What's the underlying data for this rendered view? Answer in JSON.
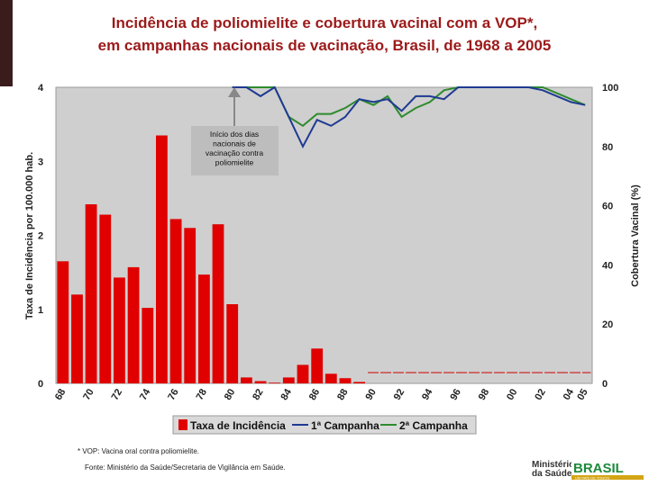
{
  "header": {
    "title_line1": "Incidência de poliomielite e cobertura vacinal com a VOP*,",
    "title_line2": "em campanhas nacionais de vacinação, Brasil, de 1968 a 2005"
  },
  "colors": {
    "title": "#9c1a1a",
    "bar": "#e00000",
    "campanha1": "#1f3a93",
    "campanha2": "#2e8b2e",
    "plot_bg": "#cfcfcf"
  },
  "chart_data": {
    "type": "bar",
    "title": "Incidência de poliomielite e cobertura vacinal com a VOP*, em campanhas nacionais de vacinação, Brasil, de 1968 a 2005",
    "ylabel": "Taxa de Incidência por 100.000 hab.",
    "y2label": "Cobertura Vacinal (%)",
    "ylim": [
      0,
      4
    ],
    "y2lim": [
      0,
      100
    ],
    "yticks": [
      "0",
      "1",
      "2",
      "3",
      "4"
    ],
    "y2ticks": [
      "0",
      "20",
      "40",
      "60",
      "80",
      "100"
    ],
    "xticks": [
      "68",
      "70",
      "72",
      "74",
      "76",
      "78",
      "80",
      "82",
      "84",
      "86",
      "88",
      "90",
      "92",
      "94",
      "96",
      "98",
      "00",
      "02",
      "04",
      "05"
    ],
    "years": [
      1968,
      1969,
      1970,
      1971,
      1972,
      1973,
      1974,
      1975,
      1976,
      1977,
      1978,
      1979,
      1980,
      1981,
      1982,
      1983,
      1984,
      1985,
      1986,
      1987,
      1988,
      1989,
      1990,
      1991,
      1992,
      1993,
      1994,
      1995,
      1996,
      1997,
      1998,
      1999,
      2000,
      2001,
      2002,
      2003,
      2004,
      2005
    ],
    "series": [
      {
        "name": "Taxa de Incidência",
        "type": "bar",
        "axis": "left",
        "values": [
          1.65,
          1.2,
          2.42,
          2.28,
          1.43,
          1.57,
          1.02,
          3.35,
          2.22,
          2.1,
          1.47,
          2.15,
          1.07,
          0.08,
          0.03,
          0.01,
          0.08,
          0.25,
          0.47,
          0.13,
          0.07,
          0.02,
          0,
          0,
          0,
          0,
          0,
          0,
          0,
          0,
          0,
          0,
          0,
          0,
          0,
          0,
          0,
          0
        ]
      },
      {
        "name": "1ª Campanha",
        "type": "line",
        "axis": "right",
        "x": [
          1980,
          1981,
          1982,
          1983,
          1984,
          1985,
          1986,
          1987,
          1988,
          1989,
          1990,
          1991,
          1992,
          1993,
          1994,
          1995,
          1996,
          1997,
          1998,
          1999,
          2000,
          2001,
          2002,
          2003,
          2004,
          2005
        ],
        "values": [
          100,
          100,
          97,
          100,
          90,
          80,
          89,
          87,
          90,
          96,
          95,
          96,
          92,
          97,
          97,
          96,
          100,
          100,
          100,
          100,
          100,
          100,
          99,
          97,
          95,
          94
        ]
      },
      {
        "name": "2ª Campanha",
        "type": "line",
        "axis": "right",
        "x": [
          1980,
          1981,
          1982,
          1983,
          1984,
          1985,
          1986,
          1987,
          1988,
          1989,
          1990,
          1991,
          1992,
          1993,
          1994,
          1995,
          1996,
          1997,
          1998,
          1999,
          2000,
          2001,
          2002,
          2003,
          2004,
          2005
        ],
        "values": [
          100,
          100,
          100,
          100,
          90,
          87,
          91,
          91,
          93,
          96,
          94,
          97,
          90,
          93,
          95,
          99,
          100,
          100,
          100,
          100,
          100,
          100,
          100,
          98,
          96,
          94
        ]
      }
    ],
    "annotation": "Início dos dias nacionais de vacinação contra poliomielite",
    "legend": [
      "Taxa de Incidência",
      "1ª Campanha",
      "2ª Campanha"
    ]
  },
  "footer": {
    "note": "* VOP: Vacina oral contra poliomielite.",
    "source": "Fonte: Ministério da Saúde/Secretaria de Vigilância em Saúde.",
    "logo_line1": "Ministério",
    "logo_line2": "da Saúde",
    "logo_brasil": "BRASIL",
    "logo_slogan": "UM PAÍS DE TODOS"
  }
}
